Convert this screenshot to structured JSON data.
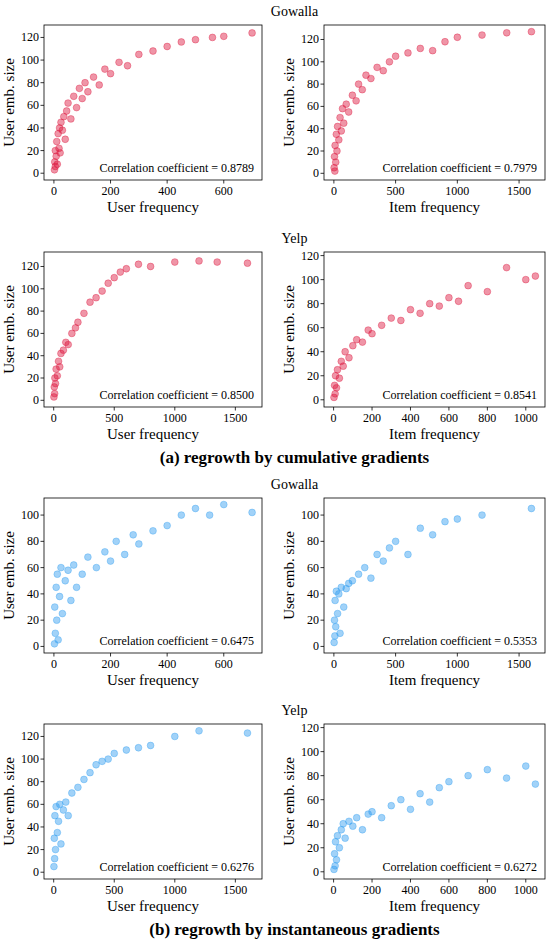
{
  "chart_data": [
    {
      "type": "scatter",
      "title": "Gowalla",
      "x_label": "User frequency",
      "y_label": "User emb. size",
      "annotation": "Correlation coefficient = 0.8789",
      "color": "#dc143c",
      "marker": "circle",
      "xlim": [
        -35,
        735
      ],
      "ylim": [
        -6,
        131
      ],
      "xticks": [
        0,
        200,
        400,
        600
      ],
      "yticks": [
        0,
        20,
        40,
        60,
        80,
        100,
        120
      ],
      "x": [
        2,
        3,
        5,
        5,
        8,
        10,
        12,
        15,
        18,
        20,
        22,
        25,
        30,
        35,
        40,
        45,
        50,
        60,
        70,
        80,
        90,
        100,
        110,
        120,
        140,
        160,
        180,
        200,
        230,
        260,
        300,
        350,
        400,
        450,
        500,
        560,
        600,
        700
      ],
      "values": [
        3,
        10,
        6,
        20,
        15,
        28,
        8,
        35,
        22,
        40,
        18,
        45,
        38,
        50,
        30,
        55,
        62,
        48,
        68,
        58,
        75,
        66,
        80,
        72,
        85,
        78,
        92,
        88,
        98,
        95,
        105,
        108,
        112,
        116,
        118,
        120,
        121,
        124
      ]
    },
    {
      "type": "scatter",
      "x_label": "Item frequency",
      "y_label": "User emb. size",
      "annotation": "Correlation coefficient = 0.7979",
      "color": "#dc143c",
      "marker": "circle",
      "xlim": [
        -80,
        1710
      ],
      "ylim": [
        -6,
        133
      ],
      "xticks": [
        0,
        500,
        1000,
        1500
      ],
      "yticks": [
        0,
        20,
        40,
        60,
        80,
        100,
        120
      ],
      "x": [
        2,
        5,
        8,
        10,
        15,
        20,
        25,
        30,
        40,
        50,
        60,
        70,
        80,
        100,
        120,
        150,
        180,
        200,
        230,
        260,
        300,
        350,
        400,
        450,
        500,
        600,
        700,
        800,
        900,
        1000,
        1200,
        1400,
        1600
      ],
      "values": [
        5,
        15,
        2,
        25,
        10,
        35,
        20,
        42,
        30,
        50,
        38,
        58,
        45,
        62,
        55,
        70,
        65,
        80,
        75,
        88,
        85,
        95,
        92,
        100,
        105,
        108,
        112,
        110,
        118,
        122,
        124,
        126,
        127
      ]
    },
    {
      "type": "scatter",
      "title": "Yelp",
      "x_label": "User frequency",
      "y_label": "User emb. size",
      "annotation": "Correlation coefficient = 0.8500",
      "color": "#dc143c",
      "marker": "circle",
      "xlim": [
        -80,
        1720
      ],
      "ylim": [
        -6,
        133
      ],
      "xticks": [
        0,
        500,
        1000,
        1500
      ],
      "yticks": [
        0,
        20,
        40,
        60,
        80,
        100,
        120
      ],
      "x": [
        2,
        5,
        8,
        10,
        15,
        20,
        30,
        40,
        50,
        60,
        80,
        100,
        120,
        150,
        180,
        200,
        250,
        300,
        350,
        400,
        450,
        500,
        550,
        600,
        700,
        800,
        1000,
        1200,
        1350,
        1600
      ],
      "values": [
        3,
        12,
        6,
        20,
        15,
        28,
        22,
        35,
        30,
        42,
        45,
        52,
        50,
        60,
        65,
        70,
        78,
        88,
        92,
        98,
        105,
        110,
        115,
        118,
        122,
        120,
        124,
        125,
        124,
        123
      ]
    },
    {
      "type": "scatter",
      "x_label": "Item frequency",
      "y_label": "User emb. size",
      "annotation": "Correlation coefficient = 0.8541",
      "color": "#dc143c",
      "marker": "circle",
      "xlim": [
        -50,
        1100
      ],
      "ylim": [
        -6,
        123
      ],
      "xticks": [
        0,
        200,
        400,
        600,
        800,
        1000
      ],
      "yticks": [
        0,
        20,
        40,
        60,
        80,
        100,
        120
      ],
      "x": [
        2,
        5,
        8,
        10,
        15,
        20,
        30,
        40,
        50,
        60,
        80,
        100,
        120,
        150,
        180,
        200,
        250,
        300,
        350,
        400,
        450,
        500,
        550,
        600,
        650,
        700,
        800,
        900,
        1000,
        1050
      ],
      "values": [
        2,
        12,
        5,
        20,
        10,
        25,
        18,
        32,
        28,
        40,
        35,
        45,
        50,
        48,
        58,
        55,
        62,
        68,
        66,
        75,
        72,
        80,
        78,
        85,
        82,
        95,
        90,
        110,
        100,
        103
      ]
    },
    {
      "type": "scatter",
      "title": "Gowalla",
      "x_label": "User frequency",
      "y_label": "User emb. size",
      "annotation": "Correlation coefficient = 0.6475",
      "color": "#2e9cf0",
      "marker": "circle",
      "xlim": [
        -35,
        735
      ],
      "ylim": [
        -5,
        113
      ],
      "xticks": [
        0,
        200,
        400,
        600
      ],
      "yticks": [
        0,
        20,
        40,
        60,
        80,
        100
      ],
      "x": [
        2,
        3,
        5,
        8,
        10,
        12,
        15,
        20,
        25,
        30,
        40,
        50,
        60,
        70,
        80,
        100,
        120,
        150,
        180,
        200,
        220,
        250,
        280,
        300,
        350,
        400,
        450,
        500,
        550,
        600,
        700
      ],
      "values": [
        2,
        30,
        10,
        45,
        20,
        55,
        5,
        38,
        60,
        25,
        50,
        58,
        35,
        62,
        45,
        55,
        68,
        60,
        72,
        65,
        80,
        70,
        85,
        78,
        88,
        92,
        100,
        105,
        100,
        108,
        102
      ]
    },
    {
      "type": "scatter",
      "x_label": "Item frequency",
      "y_label": "User emb. size",
      "annotation": "Correlation coefficient = 0.5353",
      "color": "#2e9cf0",
      "marker": "circle",
      "xlim": [
        -80,
        1710
      ],
      "ylim": [
        -5,
        113
      ],
      "xticks": [
        0,
        500,
        1000,
        1500
      ],
      "yticks": [
        0,
        20,
        40,
        60,
        80,
        100
      ],
      "x": [
        2,
        5,
        8,
        10,
        15,
        20,
        30,
        40,
        50,
        60,
        80,
        100,
        120,
        150,
        200,
        250,
        300,
        350,
        400,
        450,
        500,
        600,
        700,
        800,
        900,
        1000,
        1200,
        1600
      ],
      "values": [
        3,
        20,
        8,
        35,
        15,
        42,
        25,
        40,
        10,
        45,
        30,
        44,
        48,
        50,
        55,
        60,
        52,
        70,
        65,
        75,
        80,
        70,
        90,
        85,
        95,
        97,
        100,
        105
      ]
    },
    {
      "type": "scatter",
      "title": "Yelp",
      "x_label": "User frequency",
      "y_label": "User emb. size",
      "annotation": "Correlation coefficient = 0.6276",
      "color": "#2e9cf0",
      "marker": "circle",
      "xlim": [
        -80,
        1720
      ],
      "ylim": [
        -6,
        131
      ],
      "xticks": [
        0,
        500,
        1000,
        1500
      ],
      "yticks": [
        0,
        20,
        40,
        60,
        80,
        100,
        120
      ],
      "x": [
        2,
        5,
        8,
        10,
        15,
        20,
        30,
        40,
        50,
        60,
        80,
        100,
        120,
        150,
        200,
        250,
        300,
        350,
        400,
        450,
        500,
        600,
        700,
        800,
        1000,
        1200,
        1600
      ],
      "values": [
        5,
        30,
        12,
        50,
        20,
        58,
        35,
        45,
        60,
        25,
        55,
        62,
        50,
        70,
        75,
        82,
        88,
        95,
        98,
        100,
        105,
        108,
        110,
        112,
        120,
        125,
        123
      ]
    },
    {
      "type": "scatter",
      "x_label": "Item frequency",
      "y_label": "User emb. size",
      "annotation": "Correlation coefficient = 0.6272",
      "color": "#2e9cf0",
      "marker": "circle",
      "xlim": [
        -50,
        1100
      ],
      "ylim": [
        -6,
        123
      ],
      "xticks": [
        0,
        200,
        400,
        600,
        800,
        1000
      ],
      "yticks": [
        0,
        20,
        40,
        60,
        80,
        100,
        120
      ],
      "x": [
        2,
        5,
        8,
        10,
        15,
        20,
        30,
        40,
        50,
        60,
        80,
        100,
        120,
        150,
        180,
        200,
        250,
        300,
        350,
        400,
        450,
        500,
        550,
        600,
        700,
        800,
        900,
        1000,
        1050
      ],
      "values": [
        2,
        15,
        5,
        25,
        10,
        30,
        20,
        35,
        40,
        28,
        42,
        38,
        45,
        35,
        48,
        50,
        45,
        55,
        60,
        52,
        65,
        58,
        70,
        75,
        80,
        85,
        78,
        88,
        73
      ]
    }
  ],
  "captions": [
    "(a) regrowth by cumulative gradients",
    "(b) regrowth by instantaneous gradients"
  ]
}
